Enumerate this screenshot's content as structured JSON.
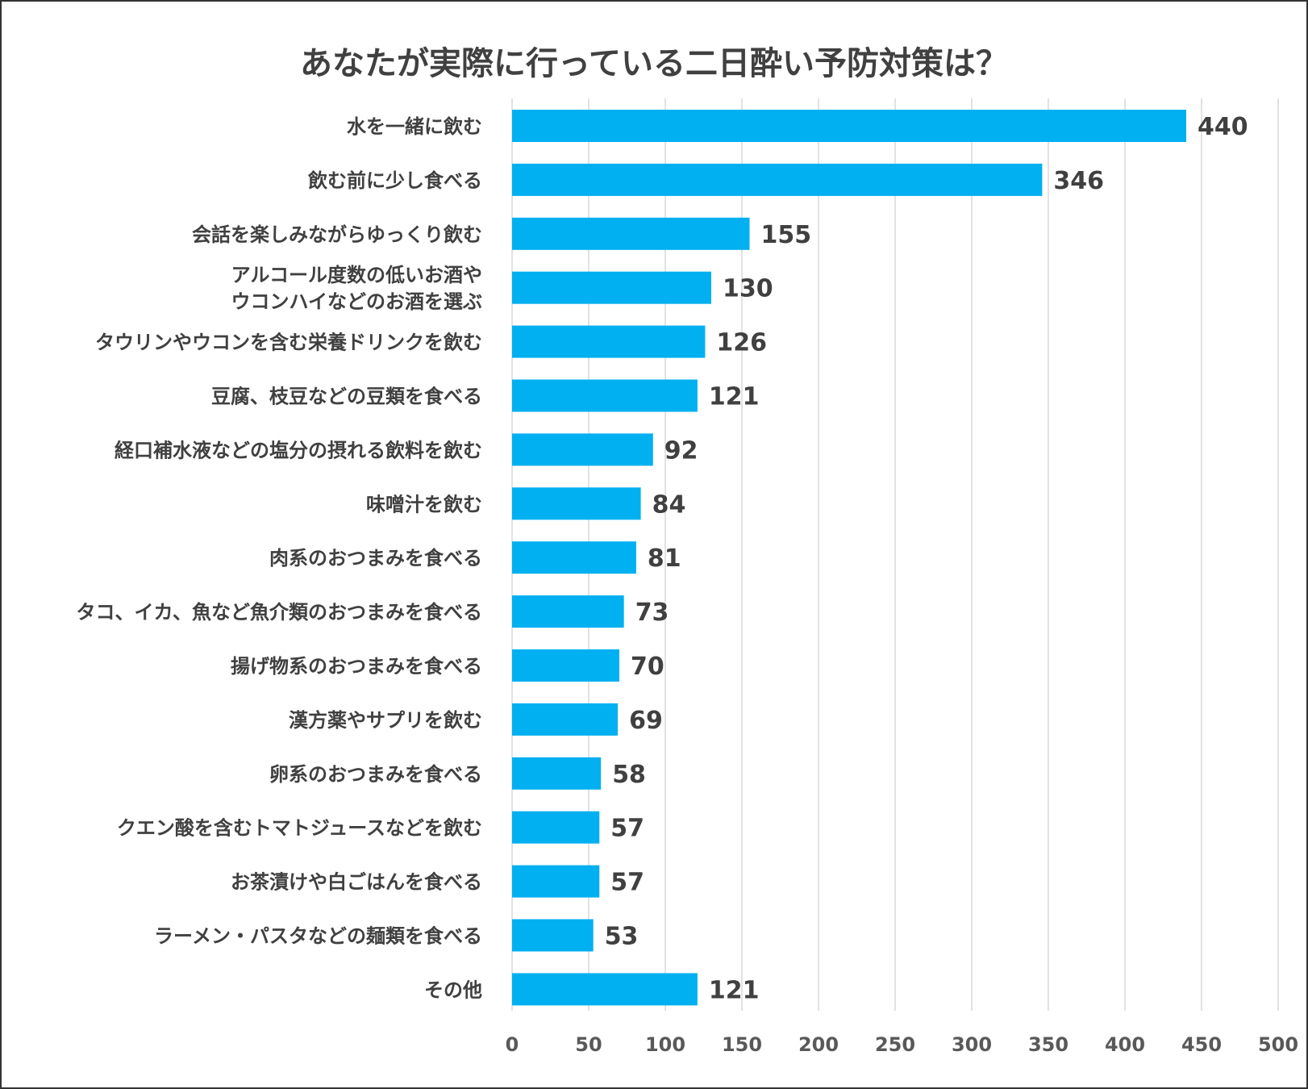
{
  "chart_data": {
    "type": "bar",
    "orientation": "horizontal",
    "title": "あなたが実際に行っている二日酔い予防対策は？",
    "categories": [
      "水を一緒に飲む",
      "飲む前に少し食べる",
      "会話を楽しみながらゆっくり飲む",
      "アルコール度数の低いお酒や\nウコンハイなどのお酒を選ぶ",
      "タウリンやウコンを含む栄養ドリンクを飲む",
      "豆腐、枝豆などの豆類を食べる",
      "経口補水液などの塩分の摂れる飲料を飲む",
      "味噌汁を飲む",
      "肉系のおつまみを食べる",
      "タコ、イカ、魚など魚介類のおつまみを食べる",
      "揚げ物系のおつまみを食べる",
      "漢方薬やサプリを飲む",
      "卵系のおつまみを食べる",
      "クエン酸を含むトマトジュースなどを飲む",
      "お茶漬けや白ごはんを食べる",
      "ラーメン・パスタなどの麺類を食べる",
      "その他"
    ],
    "values": [
      440,
      346,
      155,
      130,
      126,
      121,
      92,
      84,
      81,
      73,
      70,
      69,
      58,
      57,
      57,
      53,
      121
    ],
    "xlim": [
      0,
      500
    ],
    "ticks": [
      "0",
      "50",
      "100",
      "150",
      "200",
      "250",
      "300",
      "350",
      "400",
      "450",
      "500"
    ],
    "grid": "vertical",
    "bar_color": "#00B0F0",
    "data_labels": true
  }
}
